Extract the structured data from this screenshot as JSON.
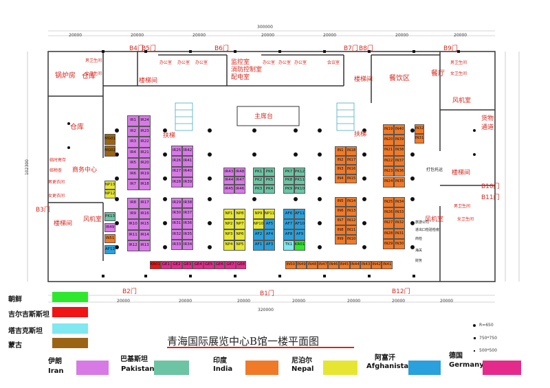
{
  "title": "青海国际展览中心B馆一楼平面图",
  "dims": {
    "top_total": "300000",
    "top_segments": [
      "20000",
      "20000",
      "20000",
      "20000",
      "20000",
      "20000",
      "20000"
    ],
    "bottom_total": "320000",
    "bottom_segments": [
      "20000",
      "20000",
      "20000",
      "20000",
      "20000",
      "20000",
      "20000"
    ],
    "left_total": "102300"
  },
  "gates": [
    "B4门",
    "B5门",
    "B6门",
    "B7门",
    "B8门",
    "B9门",
    "B10门",
    "B11门",
    "B12门",
    "B1门",
    "B2门",
    "B3门"
  ],
  "rooms": {
    "boiler": "锅炉房",
    "warehouse1": "仓库",
    "warehouse2": "仓库",
    "stairs1": "楼梯间",
    "stairs2": "楼梯间",
    "stairs3": "楼梯间",
    "stairs4": "楼梯间",
    "office": "办公室",
    "monitor": "监控室",
    "fire": "消防控制室",
    "power": "配电室",
    "meeting": "会议室",
    "dining": "餐饮区",
    "restaurant": "餐厅",
    "male_wc": "男卫生间",
    "female_wc": "女卫生间",
    "fan1": "风机室",
    "fan2": "风机室",
    "fan3": "风机室",
    "stage": "主席台",
    "escalator1": "扶梯",
    "escalator2": "扶梯",
    "cargo": "货物通道",
    "business": "商务中心",
    "deposit": "临时寄存",
    "lost": "临物查",
    "guard": "男更衣间",
    "guard2": "女更衣间",
    "print": "打包托运",
    "travel": "旅游公司",
    "trade": "进出口检验检疫",
    "bank": "商检",
    "customs": "海关",
    "finance": "财务"
  },
  "booths": {
    "IR_left": [
      "IR1",
      "IR24",
      "IR2",
      "IR23",
      "IR3",
      "IR22",
      "IR4",
      "IR21",
      "IR5",
      "IR20",
      "IR6",
      "IR19",
      "IR7",
      "IR18"
    ],
    "IR_left2": [
      "IR8",
      "IR17",
      "IR9",
      "IR16",
      "IR10",
      "IR15",
      "IR11",
      "IR14",
      "IR12",
      "IR13"
    ],
    "IR_mid": [
      "IR25",
      "IR42",
      "IR26",
      "IR41",
      "IR27",
      "IR40",
      "IR28",
      "IR39"
    ],
    "IR_mid2": [
      "IR29",
      "IR38",
      "IR30",
      "IR37",
      "IR31",
      "IR36",
      "IR32",
      "IR35",
      "IR33",
      "IR34"
    ],
    "IR_c": [
      "IR43",
      "IR48",
      "IR44",
      "IR47",
      "IR45",
      "IR46"
    ],
    "PK": [
      "PK1",
      "PK6",
      "PK2",
      "PK5",
      "PK3",
      "PK4"
    ],
    "PK2": [
      "PK7",
      "PK12",
      "PK8",
      "PK11",
      "PK9",
      "PK10"
    ],
    "NP": [
      "NP1",
      "NP8",
      "NP2",
      "NP7",
      "NP3",
      "NP6",
      "NP4",
      "NP5"
    ],
    "NPAF": [
      "NP9",
      "NP11",
      "NP10",
      "AF5",
      "AF2",
      "AF4",
      "AF1",
      "AF3"
    ],
    "AF": [
      "AF6",
      "AF11",
      "AF7",
      "AF10",
      "AF8",
      "AF9",
      "TK1",
      "KR01"
    ],
    "IN_a": [
      "IN1",
      "IN18",
      "IN2",
      "IN17",
      "IN3",
      "IN16",
      "IN4",
      "IN15"
    ],
    "IN_b": [
      "IN5",
      "IN14",
      "IN6",
      "IN13",
      "IN7",
      "IN12",
      "IN8",
      "IN11",
      "IN9",
      "IN10"
    ],
    "IN_c": [
      "IN19",
      "IN40",
      "IN20",
      "IN39",
      "IN21",
      "IN38",
      "IN22",
      "IN37",
      "IN23",
      "IN36",
      "IN24",
      "IN35"
    ],
    "IN_d": [
      "IN25",
      "IN34",
      "IN26",
      "IN33",
      "IN27",
      "IN32",
      "IN28",
      "IN31",
      "IN29",
      "IN30"
    ],
    "IN_e": [
      "IN32",
      "IN31"
    ],
    "side": [
      "MG01",
      "MG02",
      "NP13",
      "NP12",
      "PK13",
      "IR49",
      "IN51",
      "AF12"
    ],
    "bottom_ge": [
      "KR01",
      "GE1",
      "GE2",
      "GE3",
      "GE4",
      "GE5",
      "GE6",
      "GE7",
      "GE8"
    ],
    "bottom_in": [
      "IN50",
      "IN49",
      "IN48",
      "IN47",
      "IN46",
      "IN45",
      "IN44",
      "IN43",
      "IN42",
      "IN41"
    ]
  },
  "legend_left": [
    {
      "label": "朝鲜",
      "color": "#2ee82e"
    },
    {
      "label": "吉尔吉斯斯坦",
      "color": "#f01414"
    },
    {
      "label": "塔吉克斯坦",
      "color": "#7fe8f0"
    },
    {
      "label": "蒙古",
      "color": "#9b6414"
    }
  ],
  "legend_bottom": [
    {
      "label": "伊朗",
      "sub": "Iran",
      "color": "#d77ae6"
    },
    {
      "label": "巴基斯坦",
      "sub": "Pakistan",
      "color": "#6cc4a4"
    },
    {
      "label": "印度",
      "sub": "India",
      "color": "#f07a28"
    },
    {
      "label": "尼泊尔",
      "sub": "Nepal",
      "color": "#e6e632"
    },
    {
      "label": "阿富汗",
      "sub": "Afghanistan",
      "color": "#2aa0dc"
    },
    {
      "label": "德国",
      "sub": "Germany",
      "color": "#e62a8c"
    }
  ],
  "symbols": [
    {
      "label": "R=650"
    },
    {
      "label": "750*750"
    },
    {
      "label": "500*500"
    }
  ]
}
